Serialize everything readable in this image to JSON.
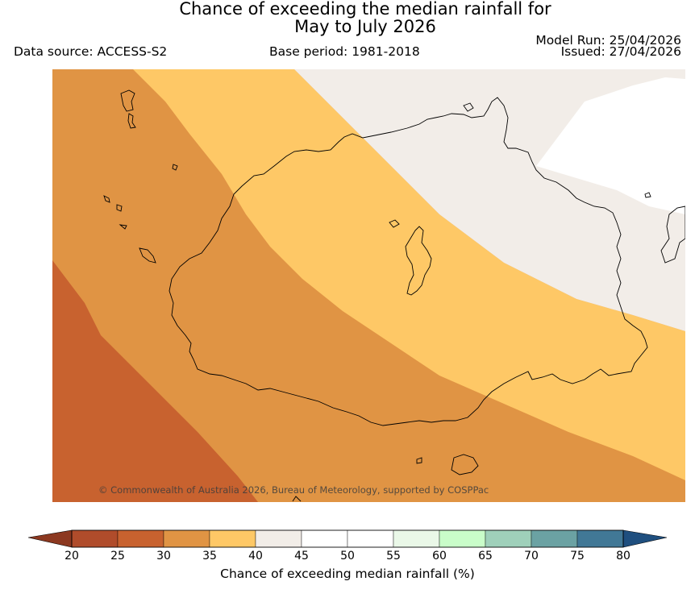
{
  "title_line1": "Chance of exceeding the median rainfall for",
  "title_line2": "May to July 2026",
  "data_source": "Data source: ACCESS-S2",
  "base_period": "Base period: 1981-2018",
  "model_run": "Model Run: 25/04/2026",
  "issued": "Issued: 27/04/2026",
  "copyright": "© Commonwealth of Australia 2026, Bureau of Meteorology, supported by COSPPac",
  "colorbar": {
    "label": "Chance of exceeding median rainfall (%)",
    "ticks": [
      "20",
      "25",
      "30",
      "35",
      "40",
      "45",
      "50",
      "55",
      "60",
      "65",
      "70",
      "75",
      "80"
    ],
    "colors": [
      "#b04c2b",
      "#c8622f",
      "#e09444",
      "#fec866",
      "#f2ede8",
      "#ffffff",
      "#ffffff",
      "#eaf8e8",
      "#c9fdc9",
      "#9fd0ba",
      "#6ba2a3",
      "#417896"
    ],
    "under_color": "#8c3820",
    "over_color": "#1f4f7f"
  },
  "map_bands": [
    {
      "range": "25-30",
      "color": "#c8622f"
    },
    {
      "range": "30-35",
      "color": "#e09444"
    },
    {
      "range": "35-40",
      "color": "#fec866"
    },
    {
      "range": "40-45",
      "color": "#f2ede8"
    },
    {
      "range": "45-50",
      "color": "#ffffff"
    }
  ]
}
